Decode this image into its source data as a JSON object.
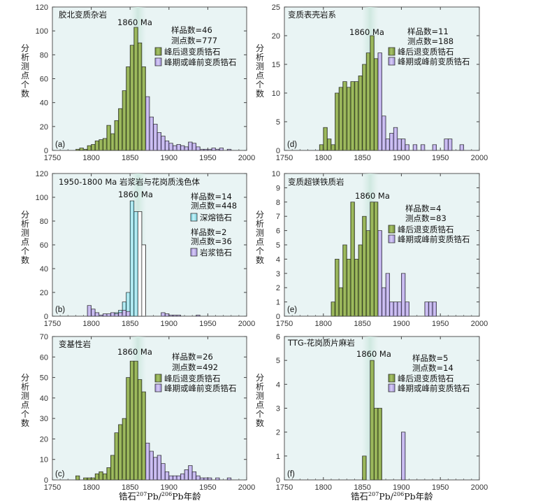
{
  "shared": {
    "ylabel": "分析测点个数",
    "xlabel_parts": [
      "锆石",
      "207",
      "Pb/",
      "206",
      "Pb年龄"
    ],
    "xticks": [
      1750,
      1800,
      1850,
      1900,
      1950,
      2000
    ],
    "highlight_age": 1860,
    "highlight_label": "1860 Ma",
    "legend_post": "峰后退变质锆石",
    "legend_peak": "峰期或峰前变质锆石",
    "legend_anatectic": "深熔锆石",
    "legend_magmatic": "岩浆锆石",
    "colors": {
      "green": "#8aa84a",
      "purple": "#b6a6e6",
      "cyan": "#9ee3ec",
      "white": "#ffffff",
      "highlight": "#d7ece6",
      "panel_bg": "#e9f4f4"
    }
  },
  "chart_data": [
    {
      "type": "bar",
      "panel": "(a)",
      "title": "胶北变质杂岩",
      "stat_line1": "样品数=46",
      "stat_line2": "测点数=777",
      "ylim": [
        0,
        120
      ],
      "yticks": [
        0,
        20,
        40,
        60,
        80,
        100,
        120
      ],
      "xlim": [
        1750,
        2000
      ],
      "bin_width": 5,
      "series": [
        {
          "name": "峰后退变质锆石",
          "color": "green",
          "x": [
            1780,
            1785,
            1790,
            1795,
            1800,
            1805,
            1810,
            1815,
            1820,
            1825,
            1830,
            1835,
            1840,
            1845,
            1850,
            1855,
            1860,
            1865
          ],
          "values": [
            1,
            2,
            1,
            4,
            5,
            8,
            9,
            10,
            21,
            14,
            25,
            35,
            50,
            70,
            88,
            103,
            90,
            70
          ]
        },
        {
          "name": "峰期或峰前变质锆石",
          "color": "purple",
          "x": [
            1870,
            1875,
            1880,
            1885,
            1890,
            1895,
            1900,
            1905,
            1910,
            1915,
            1920,
            1925,
            1930,
            1935,
            1940,
            1945,
            1950,
            1955,
            1960,
            1965,
            1970,
            1975
          ],
          "values": [
            45,
            28,
            22,
            15,
            12,
            8,
            6,
            4,
            5,
            4,
            3,
            7,
            6,
            3,
            1,
            1,
            1,
            2,
            1,
            2,
            0,
            1
          ]
        }
      ]
    },
    {
      "type": "bar",
      "panel": "(d)",
      "title": "变质表壳岩系",
      "stat_line1": "样品数=11",
      "stat_line2": "测点数=188",
      "ylim": [
        0,
        25
      ],
      "yticks": [
        0,
        5,
        10,
        15,
        20,
        25
      ],
      "xlim": [
        1750,
        2000
      ],
      "bin_width": 5,
      "series": [
        {
          "name": "峰后退变质锆石",
          "color": "green",
          "x": [
            1795,
            1800,
            1805,
            1810,
            1815,
            1820,
            1825,
            1830,
            1835,
            1840,
            1845,
            1850,
            1855,
            1860,
            1865
          ],
          "values": [
            1,
            4,
            2,
            1,
            10,
            11,
            12,
            11,
            12,
            12,
            13,
            15,
            17,
            20,
            16
          ]
        },
        {
          "name": "峰期或峰前变质锆石",
          "color": "purple",
          "x": [
            1870,
            1875,
            1880,
            1885,
            1890,
            1895,
            1900,
            1905,
            1910,
            1915,
            1920,
            1925,
            1930,
            1935,
            1940,
            1945,
            1950,
            1955,
            1960,
            1965,
            1970,
            1975
          ],
          "values": [
            17,
            6,
            2,
            3,
            4,
            2,
            2,
            1,
            0,
            1,
            0,
            1,
            0,
            0,
            1,
            0,
            0,
            2,
            2,
            0,
            0,
            1
          ]
        }
      ]
    },
    {
      "type": "bar",
      "panel": "(b)",
      "title": "1950-1800 Ma 岩浆岩与花岗质浅色体",
      "stat_line1": "样品数=14",
      "stat_line2": "测点数=448",
      "stat_line3": "样品数=2",
      "stat_line4": "测点数=36",
      "ylim": [
        0,
        120
      ],
      "yticks": [
        0,
        20,
        40,
        60,
        80,
        100,
        120
      ],
      "xlim": [
        1750,
        2000
      ],
      "bin_width": 5,
      "series": [
        {
          "name": "深熔锆石",
          "color": "cyan",
          "shading": "hatched",
          "x": [
            1830,
            1835,
            1840,
            1845,
            1850,
            1855,
            1860,
            1865
          ],
          "values": [
            3,
            5,
            12,
            20,
            97,
            88,
            88,
            60
          ]
        },
        {
          "name": "深熔锆石 (1860 Ma)",
          "color": "white",
          "x": [
            1860,
            1865
          ],
          "values": [
            88,
            60
          ]
        },
        {
          "name": "岩浆锆石",
          "color": "purple",
          "x": [
            1795,
            1800,
            1805,
            1810,
            1815,
            1820,
            1825,
            1830,
            1835,
            1840,
            1845,
            1890,
            1895,
            1900,
            1905,
            1910,
            1935
          ],
          "values": [
            9,
            6,
            3,
            1,
            2,
            2,
            3,
            2,
            3,
            5,
            4,
            3,
            2,
            1,
            1,
            1,
            1
          ]
        }
      ]
    },
    {
      "type": "bar",
      "panel": "(e)",
      "title": "变质超镁铁质岩",
      "stat_line1": "样品数=4",
      "stat_line2": "测点数=83",
      "ylim": [
        0,
        10
      ],
      "yticks": [
        0,
        1,
        2,
        3,
        4,
        5,
        6,
        7,
        8,
        9,
        10
      ],
      "xlim": [
        1750,
        2000
      ],
      "bin_width": 5,
      "series": [
        {
          "name": "峰后退变质锆石",
          "color": "green",
          "x": [
            1810,
            1815,
            1820,
            1825,
            1830,
            1835,
            1840,
            1845,
            1850,
            1855,
            1860,
            1865
          ],
          "values": [
            1,
            4,
            2,
            5,
            4,
            8,
            4,
            5,
            7,
            6,
            8,
            8
          ]
        },
        {
          "name": "峰期或峰前变质锆石",
          "color": "purple",
          "x": [
            1870,
            1875,
            1880,
            1885,
            1890,
            1895,
            1900,
            1905,
            1910,
            1915,
            1920,
            1925,
            1930,
            1935,
            1940
          ],
          "values": [
            6,
            2,
            3,
            1,
            1,
            1,
            3,
            1,
            0,
            0,
            0,
            0,
            1,
            1,
            1
          ]
        }
      ]
    },
    {
      "type": "bar",
      "panel": "(c)",
      "title": "变基性岩",
      "stat_line1": "样品数=26",
      "stat_line2": "测点数=492",
      "ylim": [
        0,
        70
      ],
      "yticks": [
        0,
        10,
        20,
        30,
        40,
        50,
        60,
        70
      ],
      "xlim": [
        1750,
        2000
      ],
      "bin_width": 5,
      "series": [
        {
          "name": "峰后退变质锆石",
          "color": "green",
          "x": [
            1780,
            1785,
            1790,
            1795,
            1800,
            1805,
            1810,
            1815,
            1820,
            1825,
            1830,
            1835,
            1840,
            1845,
            1850,
            1855,
            1860,
            1865
          ],
          "values": [
            2,
            0,
            1,
            1,
            1,
            3,
            4,
            3,
            6,
            12,
            23,
            27,
            30,
            50,
            58,
            58,
            49,
            43
          ]
        },
        {
          "name": "峰期或峰前变质锆石",
          "color": "purple",
          "x": [
            1870,
            1875,
            1880,
            1885,
            1890,
            1895,
            1900,
            1905,
            1910,
            1915,
            1920,
            1925,
            1930,
            1935,
            1940,
            1945,
            1950,
            1955,
            1960,
            1965,
            1970,
            1975
          ],
          "values": [
            18,
            14,
            11,
            12,
            8,
            4,
            2,
            2,
            2,
            3,
            5,
            7,
            4,
            2,
            1,
            1,
            1,
            0,
            1,
            0,
            0,
            1
          ]
        }
      ]
    },
    {
      "type": "bar",
      "panel": "(f)",
      "title": "TTG-花岗质片麻岩",
      "stat_line1": "样品数=5",
      "stat_line2": "测点数=14",
      "ylim": [
        0,
        6
      ],
      "yticks": [
        0,
        1,
        2,
        3,
        4,
        5,
        6
      ],
      "xlim": [
        1750,
        2000
      ],
      "bin_width": 5,
      "series": [
        {
          "name": "峰后退变质锆石",
          "color": "green",
          "x": [
            1850,
            1855,
            1860,
            1865,
            1870
          ],
          "values": [
            1,
            0,
            5,
            3,
            3
          ]
        },
        {
          "name": "峰期或峰前变质锆石",
          "color": "purple",
          "x": [
            1900
          ],
          "values": [
            2
          ]
        }
      ]
    }
  ]
}
